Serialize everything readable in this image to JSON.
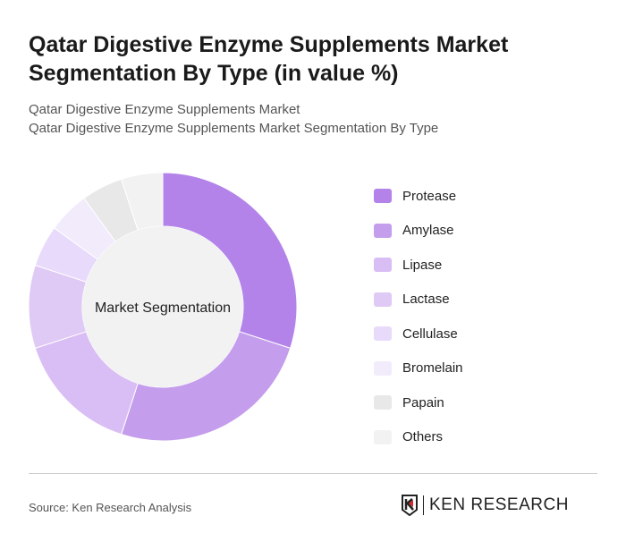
{
  "header": {
    "title": "Qatar Digestive Enzyme Supplements Market Segmentation By Type (in value %)",
    "subtitle1": "Qatar Digestive Enzyme Supplements Market",
    "subtitle2": "Qatar Digestive Enzyme Supplements Market Segmentation By Type"
  },
  "chart_data": {
    "type": "pie",
    "donut": true,
    "center_label": "Market Segmentation",
    "legend_position": "right",
    "categories": [
      "Protease",
      "Amylase",
      "Lipase",
      "Lactase",
      "Cellulase",
      "Bromelain",
      "Papain",
      "Others"
    ],
    "values": [
      30,
      25,
      15,
      10,
      5,
      5,
      5,
      5
    ],
    "colors": [
      "#b383ea",
      "#c49dec",
      "#d9bdf5",
      "#dfc9f5",
      "#e8dafa",
      "#f1ebfc",
      "#e8e8e8",
      "#f2f2f2"
    ]
  },
  "footer": {
    "source": "Source: Ken Research Analysis",
    "logo_text": "KEN RESEARCH"
  }
}
